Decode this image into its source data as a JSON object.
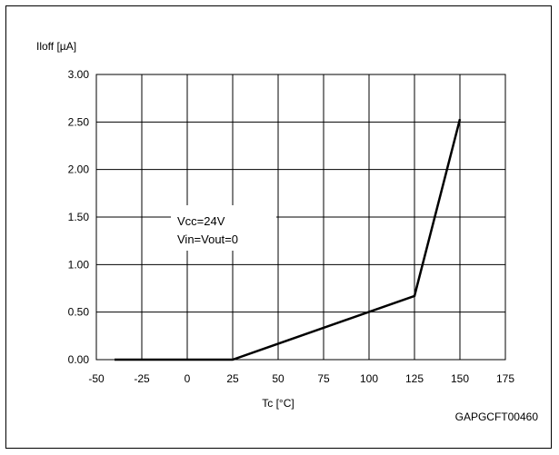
{
  "chart_data": {
    "type": "line",
    "ylabel": "Iloff [µA]",
    "xlabel": "Tc [°C]",
    "code": "GAPGCFT00460",
    "annotation": [
      "Vcc=24V",
      "Vin=Vout=0"
    ],
    "xlim": [
      -50,
      175
    ],
    "ylim": [
      0,
      3
    ],
    "x_ticks": [
      -50,
      -25,
      0,
      25,
      50,
      75,
      100,
      125,
      150,
      175
    ],
    "y_ticks": [
      0,
      0.5,
      1,
      1.5,
      2,
      2.5,
      3
    ],
    "x_tick_labels": [
      "-50",
      "-25",
      "0",
      "25",
      "50",
      "75",
      "100",
      "125",
      "150",
      "175"
    ],
    "y_tick_labels": [
      "0.00",
      "0.50",
      "1.00",
      "1.50",
      "2.00",
      "2.50",
      "3.00"
    ],
    "grid": true,
    "series": [
      {
        "x": [
          -40,
          25,
          125,
          150
        ],
        "y": [
          0,
          0,
          0.67,
          2.53
        ]
      }
    ]
  }
}
